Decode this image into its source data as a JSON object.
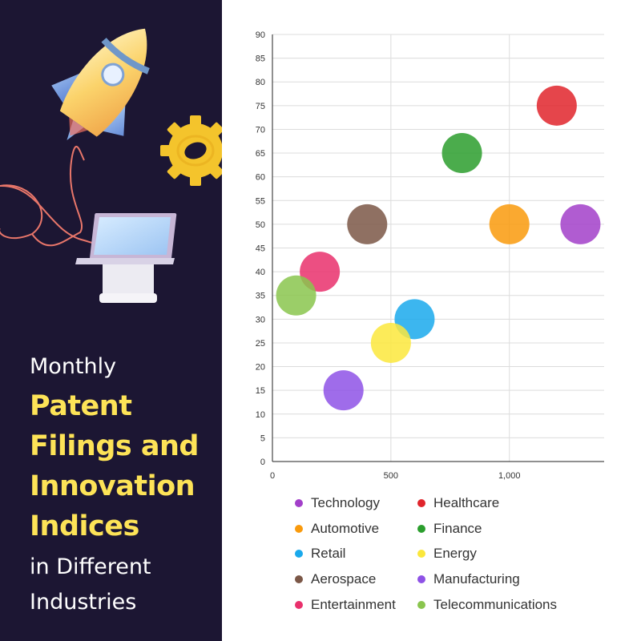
{
  "title": {
    "line1": "Monthly",
    "highlight": [
      "Patent",
      "Filings and",
      "Innovation",
      "Indices"
    ],
    "line_after": [
      "in Different",
      "Industries"
    ]
  },
  "colors": {
    "left_panel_bg": "#1c1633",
    "highlight": "#fde357",
    "title_text": "#ffffff"
  },
  "illustration": {
    "items": [
      "rocket-icon",
      "gear-icon",
      "laptop-icon",
      "cable-line"
    ]
  },
  "chart_data": {
    "type": "bubble",
    "xlim": [
      0,
      1400
    ],
    "ylim": [
      0,
      90
    ],
    "xticks": [
      0,
      500,
      1000
    ],
    "xtick_labels": [
      "0",
      "500",
      "1,000"
    ],
    "yticks": [
      0,
      5,
      10,
      15,
      20,
      25,
      30,
      35,
      40,
      45,
      50,
      55,
      60,
      65,
      70,
      75,
      80,
      85,
      90
    ],
    "grid": true,
    "legend_position": "bottom",
    "series": [
      {
        "name": "Technology",
        "color": "#a23fc9",
        "x": 1300,
        "y": 50
      },
      {
        "name": "Healthcare",
        "color": "#e0252c",
        "x": 1200,
        "y": 75
      },
      {
        "name": "Automotive",
        "color": "#f99a0c",
        "x": 1000,
        "y": 50
      },
      {
        "name": "Finance",
        "color": "#2b9e2d",
        "x": 800,
        "y": 65
      },
      {
        "name": "Retail",
        "color": "#1aa9ec",
        "x": 600,
        "y": 30
      },
      {
        "name": "Energy",
        "color": "#fbe73c",
        "x": 500,
        "y": 25
      },
      {
        "name": "Aerospace",
        "color": "#7b5747",
        "x": 400,
        "y": 50
      },
      {
        "name": "Manufacturing",
        "color": "#8e52e6",
        "x": 300,
        "y": 15
      },
      {
        "name": "Entertainment",
        "color": "#e9306c",
        "x": 200,
        "y": 40
      },
      {
        "name": "Telecommunications",
        "color": "#8ac54e",
        "x": 100,
        "y": 35
      }
    ]
  }
}
